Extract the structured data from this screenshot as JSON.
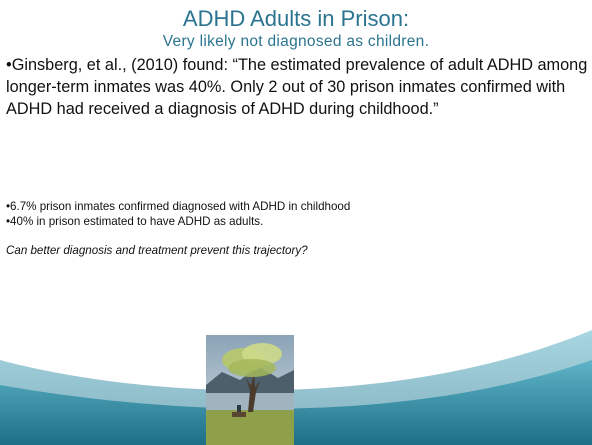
{
  "slide": {
    "title": "ADHD Adults in Prison:",
    "subtitle": "Very likely not diagnosed as children.",
    "paragraph": "•Ginsberg, et al., (2010) found:  “The estimated prevalence of adult ADHD among longer-term inmates was 40%. Only 2 out of 30 prison inmates confirmed with ADHD had received a diagnosis of ADHD during childhood.”",
    "bullets": [
      "•6.7% prison inmates confirmed diagnosed with ADHD in childhood",
      "•40% in prison estimated to have ADHD as adults."
    ],
    "question": "Can better diagnosis and treatment prevent this trajectory?"
  }
}
